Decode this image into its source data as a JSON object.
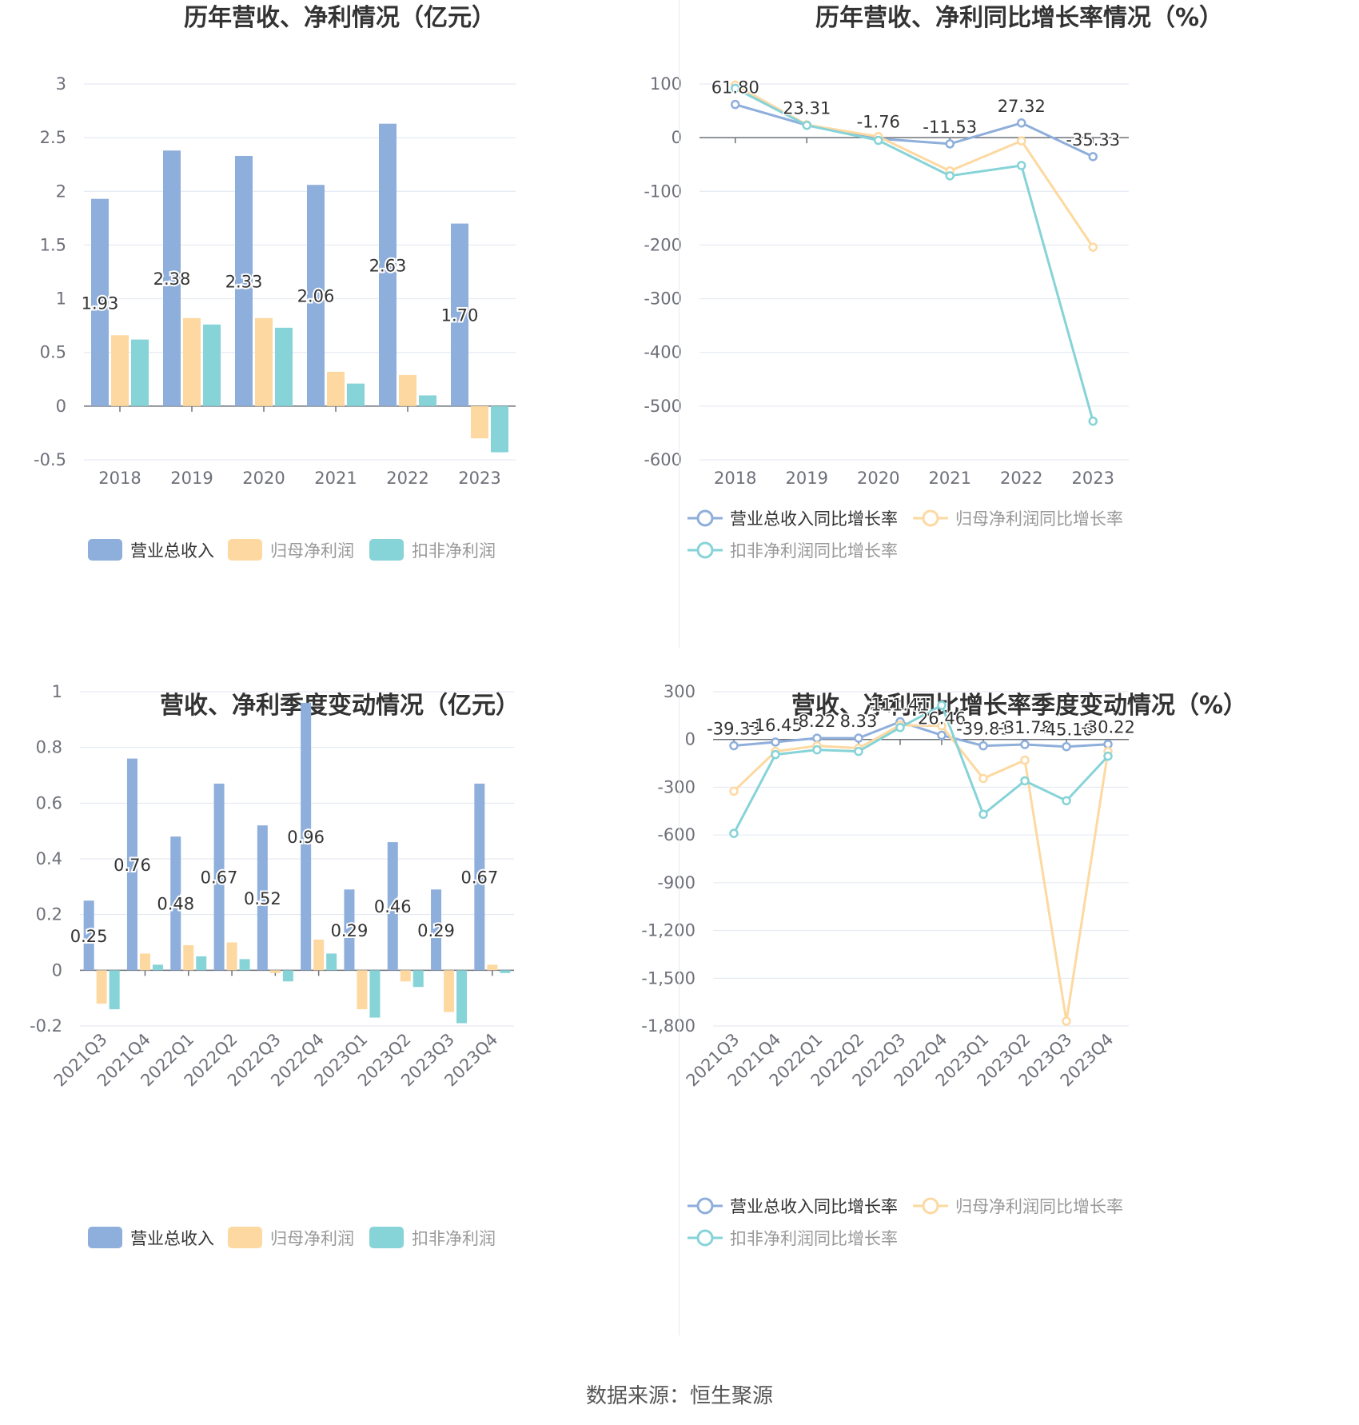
{
  "source": "数据来源：恒生聚源",
  "colors": {
    "revenue": "#8eaedb",
    "net_profit": "#fdd9a1",
    "deducted": "#86d3d8"
  },
  "chart_data": [
    {
      "type": "bar",
      "title": "历年营收、净利情况（亿元）",
      "categories": [
        "2018",
        "2019",
        "2020",
        "2021",
        "2022",
        "2023"
      ],
      "ylim": [
        -0.5,
        3
      ],
      "yticks": [
        3,
        2.5,
        2,
        1.5,
        1,
        0.5,
        0,
        -0.5
      ],
      "ytick_labels": [
        "3",
        "2.5",
        "2",
        "1.5",
        "1",
        "0.5",
        "0",
        "-0.5"
      ],
      "grid": true,
      "legend_position": "bottom",
      "series": [
        {
          "name": "营业总收入",
          "values": [
            1.93,
            2.38,
            2.33,
            2.06,
            2.63,
            1.7
          ],
          "labels": [
            "1.93",
            "2.38",
            "2.33",
            "2.06",
            "2.63",
            "1.70"
          ]
        },
        {
          "name": "归母净利润",
          "values": [
            0.66,
            0.82,
            0.82,
            0.32,
            0.29,
            -0.3
          ]
        },
        {
          "name": "扣非净利润",
          "values": [
            0.62,
            0.76,
            0.73,
            0.21,
            0.1,
            -0.43
          ]
        }
      ]
    },
    {
      "type": "line",
      "title": "历年营收、净利同比增长率情况（%）",
      "categories": [
        "2018",
        "2019",
        "2020",
        "2021",
        "2022",
        "2023"
      ],
      "ylim": [
        -600,
        100
      ],
      "yticks": [
        100,
        0,
        -100,
        -200,
        -300,
        -400,
        -500,
        -600
      ],
      "ytick_labels": [
        "100",
        "0",
        "-100",
        "-200",
        "-300",
        "-400",
        "-500",
        "-600"
      ],
      "grid": true,
      "legend_position": "bottom",
      "series": [
        {
          "name": "营业总收入同比增长率",
          "values": [
            61.8,
            23.31,
            -1.76,
            -11.53,
            27.32,
            -35.33
          ],
          "labels": [
            "61.80",
            "23.31",
            "-1.76",
            "-11.53",
            "27.32",
            "-35.33"
          ]
        },
        {
          "name": "归母净利润同比增长率",
          "values": [
            98,
            24,
            2,
            -62,
            -6,
            -204
          ]
        },
        {
          "name": "扣非净利润同比增长率",
          "values": [
            92,
            23,
            -5,
            -71,
            -52,
            -528
          ]
        }
      ]
    },
    {
      "type": "bar",
      "title": "营收、净利季度变动情况（亿元）",
      "categories": [
        "2021Q3",
        "2021Q4",
        "2022Q1",
        "2022Q2",
        "2022Q3",
        "2022Q4",
        "2023Q1",
        "2023Q2",
        "2023Q3",
        "2023Q4"
      ],
      "ylim": [
        -0.2,
        1
      ],
      "yticks": [
        1,
        0.8,
        0.6,
        0.4,
        0.2,
        0,
        -0.2
      ],
      "ytick_labels": [
        "1",
        "0.8",
        "0.6",
        "0.4",
        "0.2",
        "0",
        "-0.2"
      ],
      "grid": true,
      "legend_position": "bottom",
      "series": [
        {
          "name": "营业总收入",
          "values": [
            0.25,
            0.76,
            0.48,
            0.67,
            0.52,
            0.96,
            0.29,
            0.46,
            0.29,
            0.67
          ],
          "labels": [
            "0.25",
            "0.76",
            "0.48",
            "0.67",
            "0.52",
            "0.96",
            "0.29",
            "0.46",
            "0.29",
            "0.67"
          ]
        },
        {
          "name": "归母净利润",
          "values": [
            -0.12,
            0.06,
            0.09,
            0.1,
            -0.01,
            0.11,
            -0.14,
            -0.04,
            -0.15,
            0.02
          ]
        },
        {
          "name": "扣非净利润",
          "values": [
            -0.14,
            0.02,
            0.05,
            0.04,
            -0.04,
            0.06,
            -0.17,
            -0.06,
            -0.19,
            -0.01
          ]
        }
      ]
    },
    {
      "type": "line",
      "title": "营收、净利同比增长率季度变动情况（%）",
      "categories": [
        "2021Q3",
        "2021Q4",
        "2022Q1",
        "2022Q2",
        "2022Q3",
        "2022Q4",
        "2023Q1",
        "2023Q2",
        "2023Q3",
        "2023Q4"
      ],
      "ylim": [
        -1800,
        300
      ],
      "yticks": [
        300,
        0,
        -300,
        -600,
        -900,
        -1200,
        -1500,
        -1800
      ],
      "ytick_labels": [
        "300",
        "0",
        "-300",
        "-600",
        "-900",
        "-1,200",
        "-1,500",
        "-1,800"
      ],
      "grid": true,
      "legend_position": "bottom",
      "series": [
        {
          "name": "营业总收入同比增长率",
          "values": [
            -39.33,
            -16.45,
            8.22,
            8.33,
            111.41,
            26.46,
            -39.81,
            -31.78,
            -45.16,
            -30.22
          ],
          "labels": [
            "-39.33",
            "-16.45",
            "8.22",
            "8.33",
            "111.41",
            "26.46",
            "-39.81",
            "-31.78",
            "-45.16",
            "-30.22"
          ]
        },
        {
          "name": "归母净利润同比增长率",
          "values": [
            -325,
            -75,
            -40,
            -55,
            90,
            85,
            -245,
            -130,
            -1770,
            -75
          ]
        },
        {
          "name": "扣非净利润同比增长率",
          "values": [
            -590,
            -95,
            -65,
            -75,
            75,
            215,
            -470,
            -260,
            -385,
            -105
          ]
        }
      ]
    }
  ]
}
